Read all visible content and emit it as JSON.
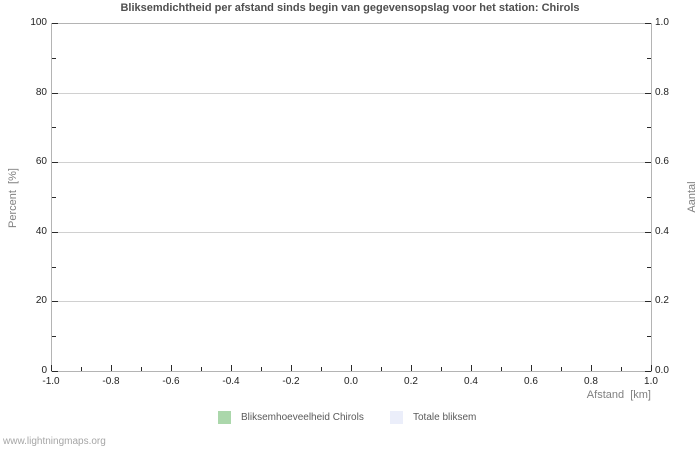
{
  "title": "Bliksemdichtheid per afstand sinds begin van gegevensopslag voor het station: Chirols",
  "watermark": "www.lightningmaps.org",
  "chart_data": {
    "type": "bar",
    "title": "Bliksemdichtheid per afstand sinds begin van gegevensopslag voor het station: Chirols",
    "x_axis": {
      "label": "Afstand  [km]",
      "min": -1.0,
      "max": 1.0,
      "major_ticks": [
        -1.0,
        -0.8,
        -0.6,
        -0.4,
        -0.2,
        0.0,
        0.2,
        0.4,
        0.6,
        0.8,
        1.0
      ],
      "tick_labels": [
        "-1.0",
        "-0.8",
        "-0.6",
        "-0.4",
        "-0.2",
        "0.0",
        "0.2",
        "0.4",
        "0.6",
        "0.8",
        "1.0"
      ],
      "minor_step": 0.1
    },
    "y_axis_left": {
      "label": "Percent  [%]",
      "min": 0,
      "max": 100,
      "major_ticks": [
        0,
        20,
        40,
        60,
        80,
        100
      ],
      "tick_labels": [
        "0",
        "20",
        "40",
        "60",
        "80",
        "100"
      ],
      "minor_step": 10,
      "grid": true
    },
    "y_axis_right": {
      "label": "Aantal",
      "min": 0.0,
      "max": 1.0,
      "major_ticks": [
        0.0,
        0.2,
        0.4,
        0.6,
        0.8,
        1.0
      ],
      "tick_labels": [
        "0.0",
        "0.2",
        "0.4",
        "0.6",
        "0.8",
        "1.0"
      ],
      "minor_step": 0.1
    },
    "series": [
      {
        "name": "Bliksemhoeveelheid Chirols",
        "color": "#abd7ab",
        "values": []
      },
      {
        "name": "Totale bliksem",
        "color": "#ebeefa",
        "values": []
      }
    ],
    "legend_position": "bottom"
  },
  "colors": {
    "background": "#ffffff",
    "title": "#4f4f4f",
    "axis_border": "#b4b4b4",
    "grid": "#d0d0d0",
    "tick": "#2a2a2a",
    "tick_label": "#1f1f1f",
    "axis_title": "#808080",
    "legend_text": "#5a5a5a",
    "watermark": "#a6a6a6"
  }
}
